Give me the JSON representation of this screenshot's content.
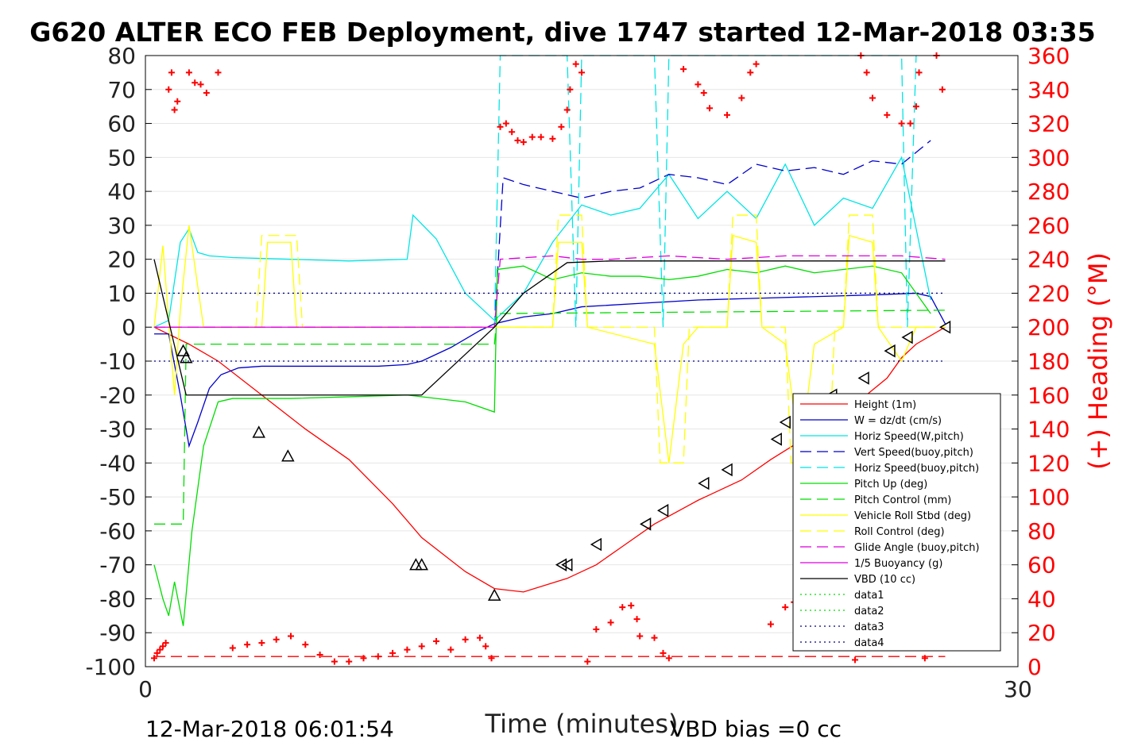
{
  "chart_data": {
    "type": "line",
    "title": "G620 ALTER ECO FEB Deployment, dive 1747 started 12-Mar-2018 03:35",
    "xlabel": "Time (minutes)",
    "ylabel_right": "(+) Heading (°M)",
    "xlim": [
      0,
      30
    ],
    "ylim": [
      -100,
      80
    ],
    "ylim_right": [
      0,
      360
    ],
    "xticks": [
      0,
      30
    ],
    "yticks": [
      80,
      70,
      60,
      50,
      40,
      30,
      20,
      10,
      0,
      -10,
      -20,
      -30,
      -40,
      -50,
      -60,
      -70,
      -80,
      -90,
      -100
    ],
    "yticks_right": [
      360,
      340,
      320,
      300,
      280,
      260,
      240,
      220,
      200,
      180,
      160,
      140,
      120,
      100,
      80,
      60,
      40,
      20,
      0
    ],
    "footer_left": "12-Mar-2018 06:01:54",
    "footer_right": "VBD bias =0 cc",
    "grid": true,
    "legend_position": "lower-right",
    "series": [
      {
        "name": "Height (1m)",
        "color": "#ff0000",
        "style": "solid",
        "x": [
          0.3,
          1.5,
          2.5,
          4.0,
          5.5,
          7.0,
          8.5,
          9.5,
          11.0,
          12.0,
          13.0,
          14.5,
          15.5,
          16.5,
          17.5,
          19.0,
          20.5,
          21.5,
          23.0,
          24.5,
          25.5,
          26.0,
          26.5,
          27.5
        ],
        "y": [
          0,
          -5,
          -10,
          -20,
          -30,
          -39,
          -52,
          -62,
          -72,
          -77,
          -78,
          -74,
          -70,
          -64,
          -58,
          -51,
          -45,
          -39,
          -31,
          -22,
          -15,
          -9,
          -5,
          0
        ]
      },
      {
        "name": "W = dz/dt (cm/s)",
        "color": "#0000cc",
        "style": "solid",
        "x": [
          0.3,
          0.8,
          1.2,
          1.5,
          1.8,
          2.2,
          2.6,
          3.2,
          4.0,
          6.0,
          8.0,
          9.0,
          9.5,
          10.5,
          11.5,
          12.0,
          13.0,
          14.0,
          15.0,
          17.0,
          19.0,
          21.0,
          23.0,
          25.0,
          26.5,
          27.0,
          27.5
        ],
        "y": [
          -2,
          -2,
          -20,
          -35,
          -28,
          -18,
          -14,
          -12,
          -11.5,
          -11.5,
          -11.5,
          -11,
          -10,
          -6,
          -1,
          1,
          3,
          4,
          6,
          7,
          8,
          8.5,
          9,
          9.5,
          10,
          9,
          1
        ]
      },
      {
        "name": "Horiz Speed(W,pitch)",
        "color": "#00e5e5",
        "style": "solid",
        "x": [
          0.3,
          0.8,
          1.2,
          1.5,
          1.8,
          2.2,
          3.0,
          5.0,
          7.0,
          9.0,
          9.2,
          10.0,
          11.0,
          12.0,
          13.0,
          14.0,
          15.0,
          16.0,
          17.0,
          18.0,
          19.0,
          20.0,
          21.0,
          22.0,
          23.0,
          24.0,
          25.0,
          26.0,
          27.0
        ],
        "y": [
          0,
          2,
          25,
          29,
          22,
          21,
          20.5,
          20,
          19.5,
          20,
          33,
          26,
          10,
          2,
          10,
          25,
          36,
          33,
          35,
          45,
          32,
          40,
          32,
          48,
          30,
          38,
          35,
          50,
          8
        ]
      },
      {
        "name": "Vert Speed(buoy,pitch)",
        "color": "#0000cc",
        "style": "dashed",
        "x": [
          12.0,
          12.3,
          13.0,
          14.0,
          15.0,
          16.0,
          17.0,
          18.0,
          19.0,
          20.0,
          21.0,
          22.0,
          23.0,
          24.0,
          25.0,
          26.0,
          27.0
        ],
        "y": [
          0,
          44,
          42,
          40,
          38,
          40,
          41,
          45,
          44,
          42,
          48,
          46,
          47,
          45,
          49,
          48,
          55
        ]
      },
      {
        "name": "Horiz Speed(buoy,pitch)",
        "color": "#00e5e5",
        "style": "dashed",
        "x": [
          12.0,
          12.2,
          14.5,
          14.8,
          15.0,
          17.5,
          17.8,
          18.0,
          26.0,
          26.2,
          26.5
        ],
        "y": [
          0,
          80,
          80,
          0,
          80,
          80,
          0,
          80,
          80,
          0,
          80
        ]
      },
      {
        "name": "Pitch Up (deg)",
        "color": "#00dd00",
        "style": "solid",
        "x": [
          0.3,
          0.6,
          0.8,
          1.0,
          1.3,
          1.6,
          2.0,
          2.5,
          3.0,
          5.0,
          7.0,
          9.0,
          11.0,
          12.0,
          12.1,
          13.0,
          14.0,
          15.0,
          16.0,
          17.0,
          18.0,
          19.0,
          20.0,
          21.0,
          22.0,
          23.0,
          24.0,
          25.0,
          26.0,
          27.0
        ],
        "y": [
          -70,
          -80,
          -85,
          -75,
          -88,
          -60,
          -35,
          -22,
          -21,
          -21,
          -20.5,
          -20,
          -22,
          -25,
          17,
          18,
          14,
          16,
          15,
          15,
          14,
          15,
          17,
          16,
          18,
          16,
          17,
          18,
          16,
          4
        ]
      },
      {
        "name": "Pitch Control (mm)",
        "color": "#00dd00",
        "style": "dashed",
        "x": [
          0.3,
          1.3,
          1.4,
          12.0,
          12.1,
          27.5
        ],
        "y": [
          -58,
          -58,
          -5,
          -5,
          4,
          5
        ]
      },
      {
        "name": "Vehicle Roll Stbd (deg)",
        "color": "#ffff00",
        "style": "solid",
        "x": [
          0.3,
          0.6,
          1.0,
          1.2,
          1.5,
          2.0,
          4.0,
          4.2,
          5.0,
          5.2,
          6.0,
          12.0,
          14.0,
          14.2,
          15.0,
          15.2,
          17.5,
          18.0,
          18.5,
          19.0,
          20.0,
          20.2,
          21.0,
          21.2,
          22.0,
          22.5,
          23.0,
          24.0,
          24.2,
          25.0,
          25.2,
          26.0,
          26.5,
          27.0
        ],
        "y": [
          0,
          24,
          -20,
          5,
          30,
          0,
          0,
          25,
          25,
          0,
          0,
          0,
          0,
          25,
          25,
          0,
          -5,
          -40,
          -5,
          0,
          0,
          27,
          25,
          0,
          -5,
          -38,
          -5,
          0,
          27,
          25,
          0,
          -10,
          0,
          0
        ]
      },
      {
        "name": "Roll Control (deg)",
        "color": "#ffff00",
        "style": "dashed",
        "x": [
          0.3,
          3.8,
          4.0,
          5.2,
          5.4,
          14.0,
          14.2,
          15.0,
          15.2,
          17.5,
          17.7,
          18.5,
          18.7,
          20.0,
          20.2,
          21.0,
          21.2,
          22.0,
          22.2,
          23.5,
          23.7,
          24.0,
          24.2,
          25.0,
          25.2,
          27.5
        ],
        "y": [
          0,
          0,
          27,
          27,
          0,
          0,
          33,
          33,
          0,
          0,
          -40,
          -40,
          0,
          0,
          33,
          33,
          0,
          0,
          -40,
          -40,
          0,
          0,
          33,
          33,
          0,
          0
        ]
      },
      {
        "name": "Glide Angle (buoy,pitch)",
        "color": "#dd00dd",
        "style": "dashed",
        "x": [
          0.3,
          12.0,
          12.2,
          14.0,
          15.0,
          16.0,
          18.0,
          20.0,
          22.0,
          24.0,
          26.0,
          27.5
        ],
        "y": [
          0,
          0,
          20,
          21,
          20,
          20,
          21,
          20,
          21,
          21,
          21,
          20
        ]
      },
      {
        "name": "1/5 Buoyancy (g)",
        "color": "#dd00dd",
        "style": "solid",
        "x": [
          0.3,
          12.0
        ],
        "y": [
          0,
          0
        ]
      },
      {
        "name": "VBD (10 cc)",
        "color": "#000000",
        "style": "solid",
        "x": [
          0.3,
          1.4,
          3.5,
          6.0,
          9.5,
          11.0,
          12.0,
          13.0,
          14.5,
          16.0,
          20.0,
          24.0,
          27.5
        ],
        "y": [
          20,
          -20,
          -20,
          -20,
          -20,
          -8,
          0,
          10,
          19,
          19.5,
          19.5,
          19.5,
          19.5
        ]
      },
      {
        "name": "data1",
        "color": "#00dd00",
        "style": "dotted",
        "x": [],
        "y": []
      },
      {
        "name": "data2",
        "color": "#00dd00",
        "style": "dotted",
        "x": [],
        "y": []
      },
      {
        "name": "data3",
        "color": "#000080",
        "style": "dotted",
        "x": [
          0.3,
          27.5
        ],
        "y": [
          10,
          10
        ]
      },
      {
        "name": "data4",
        "color": "#000080",
        "style": "dotted",
        "x": [
          0.3,
          27.5
        ],
        "y": [
          -10,
          -10
        ]
      }
    ],
    "heading_right_axis": {
      "color": "#ff0000",
      "marker": "+",
      "x": [
        0.3,
        0.4,
        0.5,
        0.6,
        0.7,
        0.8,
        0.9,
        1.0,
        1.1,
        1.5,
        1.7,
        1.9,
        2.1,
        2.5,
        3.0,
        3.5,
        4.0,
        4.5,
        5.0,
        5.5,
        6.0,
        6.5,
        7.0,
        7.5,
        8.0,
        8.5,
        9.0,
        9.5,
        10.0,
        10.5,
        11.0,
        11.5,
        11.7,
        11.9,
        12.2,
        12.4,
        12.6,
        12.8,
        13.0,
        13.3,
        13.6,
        14.0,
        14.3,
        14.5,
        14.6,
        14.8,
        15.0,
        15.2,
        15.5,
        16.0,
        16.4,
        16.7,
        16.9,
        17.0,
        17.5,
        17.8,
        18.0,
        18.5,
        19.0,
        19.2,
        19.4,
        20.0,
        20.5,
        20.8,
        21.0,
        21.5,
        22.0,
        22.3,
        22.5,
        22.7,
        22.9,
        23.0,
        23.5,
        24.0,
        24.3,
        24.4,
        24.6,
        24.8,
        25.0,
        25.5,
        26.0,
        26.3,
        26.5,
        26.6,
        26.8,
        27.0,
        27.2,
        27.4
      ],
      "y": [
        5,
        8,
        10,
        12,
        14,
        340,
        350,
        328,
        333,
        350,
        344,
        343,
        338,
        350,
        11,
        13,
        14,
        16,
        18,
        13,
        7,
        3,
        3,
        5,
        6,
        8,
        10,
        12,
        15,
        10,
        16,
        17,
        12,
        5,
        318,
        320,
        315,
        310,
        309,
        312,
        312,
        311,
        318,
        328,
        340,
        355,
        350,
        3,
        22,
        26,
        35,
        36,
        28,
        18,
        17,
        8,
        5,
        352,
        343,
        338,
        329,
        325,
        335,
        350,
        355,
        25,
        35,
        38,
        39,
        40,
        36,
        38,
        26,
        20,
        12,
        4,
        360,
        350,
        335,
        325,
        320,
        320,
        330,
        350,
        5,
        20,
        360,
        340
      ]
    },
    "bottom_reference_line": {
      "axis": "right",
      "y": 6,
      "color": "#ff0000",
      "style": "dashed"
    },
    "markers": {
      "marker": "triangle",
      "color": "#000000",
      "down_x": [
        1.3,
        1.4,
        3.9,
        4.9,
        9.3,
        9.5,
        12.0
      ],
      "down_y": [
        -7,
        -9,
        -31,
        -38,
        -70,
        -70,
        -79
      ],
      "up_x": [
        14.3,
        14.5,
        15.5,
        17.2,
        17.8,
        19.2,
        20.0,
        21.7,
        22.0,
        23.6,
        24.7,
        25.6,
        26.2,
        27.5
      ],
      "up_y": [
        -70,
        -70,
        -64,
        -58,
        -54,
        -46,
        -42,
        -33,
        -28,
        -20,
        -15,
        -7,
        -3,
        0
      ]
    }
  }
}
